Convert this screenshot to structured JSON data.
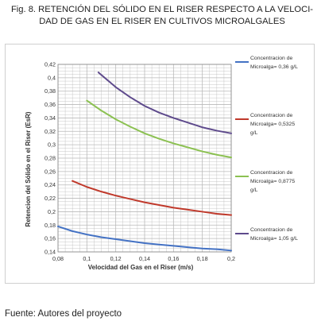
{
  "caption": {
    "line1": "Fig. 8. RETENCIÓN DEL SÓLIDO EN EL RISER RESPECTO A LA VELOCI-",
    "line2": "DAD DE GAS EN EL RISER EN CULTIVOS MICROALGALES"
  },
  "source": "Fuente: Autores del proyecto",
  "colors": {
    "blue": "#4472c4",
    "red": "#c0392b",
    "green": "#8cc152",
    "purple": "#5e4a8c",
    "grid": "#b9b9b9"
  },
  "chart_data": {
    "type": "line",
    "xlabel": "Velocidad del Gas en el Riser (m/s)",
    "ylabel": "Retencion del Sólido en  el Riser (EsR)",
    "xlim": [
      0.08,
      0.2
    ],
    "ylim": [
      0.14,
      0.42
    ],
    "xticks": [
      "0,08",
      "0,1",
      "0,12",
      "0,14",
      "0,16",
      "0,18",
      "0,2"
    ],
    "yticks": [
      "0,14",
      "0,16",
      "0,18",
      "0,2",
      "0,22",
      "0,24",
      "0,26",
      "0,28",
      "0,3",
      "0,32",
      "0,34",
      "0,36",
      "0,38",
      "0,4",
      "0,42"
    ],
    "grid": true,
    "legend_position": "right",
    "series": [
      {
        "name": "Concentracion de Microalga= 0,36 g/L",
        "color": "#4472c4",
        "x": [
          0.08,
          0.09,
          0.1,
          0.11,
          0.12,
          0.13,
          0.14,
          0.15,
          0.16,
          0.17,
          0.18,
          0.19,
          0.2
        ],
        "y": [
          0.178,
          0.171,
          0.166,
          0.162,
          0.159,
          0.156,
          0.153,
          0.151,
          0.149,
          0.147,
          0.145,
          0.144,
          0.142
        ]
      },
      {
        "name": "Concentracion de Microalga= 0,5325 g/L",
        "color": "#c0392b",
        "x": [
          0.09,
          0.1,
          0.11,
          0.12,
          0.13,
          0.14,
          0.15,
          0.16,
          0.17,
          0.18,
          0.19,
          0.2
        ],
        "y": [
          0.246,
          0.237,
          0.23,
          0.224,
          0.219,
          0.214,
          0.21,
          0.206,
          0.203,
          0.2,
          0.197,
          0.195
        ]
      },
      {
        "name": "Concentracion de Microalga= 0,8775 g/L",
        "color": "#8cc152",
        "x": [
          0.1,
          0.11,
          0.12,
          0.13,
          0.14,
          0.15,
          0.16,
          0.17,
          0.18,
          0.19,
          0.2
        ],
        "y": [
          0.366,
          0.351,
          0.338,
          0.327,
          0.317,
          0.309,
          0.302,
          0.296,
          0.29,
          0.285,
          0.281
        ]
      },
      {
        "name": "Concentracion de Microalga= 1,05 g/L",
        "color": "#5e4a8c",
        "x": [
          0.108,
          0.12,
          0.13,
          0.14,
          0.15,
          0.16,
          0.17,
          0.18,
          0.19,
          0.2
        ],
        "y": [
          0.408,
          0.386,
          0.371,
          0.358,
          0.348,
          0.34,
          0.333,
          0.326,
          0.321,
          0.317
        ]
      }
    ],
    "legend": [
      {
        "lines": [
          "Concentracion de",
          "Microalga= 0,36 g/L"
        ],
        "color": "#4472c4"
      },
      {
        "lines": [
          "Concentracion de",
          "Microalga= 0,5325",
          "g/L"
        ],
        "color": "#c0392b"
      },
      {
        "lines": [
          "Concentracion de",
          "Microalga= 0,8775",
          "g/L"
        ],
        "color": "#8cc152"
      },
      {
        "lines": [
          "Concentracion de",
          "Microalga= 1,05 g/L"
        ],
        "color": "#5e4a8c"
      }
    ]
  }
}
